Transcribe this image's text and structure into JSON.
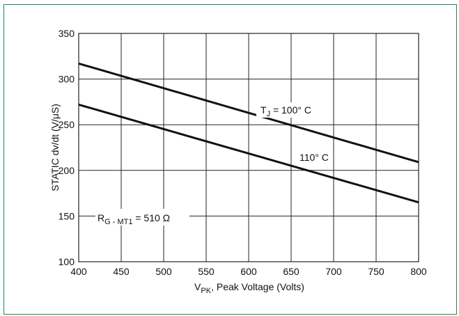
{
  "chart_data": {
    "type": "line",
    "xlabel": {
      "main": "V",
      "sub": "PK",
      "rest": ", Peak Voltage  (Volts)"
    },
    "ylabel": "STATIC dv/dt (V/μS)",
    "xlim": [
      400,
      800
    ],
    "ylim": [
      100,
      350
    ],
    "x_ticks": [
      400,
      450,
      500,
      550,
      600,
      650,
      700,
      750,
      800
    ],
    "y_ticks": [
      100,
      150,
      200,
      250,
      300,
      350
    ],
    "grid": true,
    "series": [
      {
        "label_main": "T",
        "label_sub": "J",
        "label_rest": " = 100° C",
        "x": [
          400,
          800
        ],
        "y": [
          317,
          209
        ]
      },
      {
        "label_main": "110° C",
        "label_sub": "",
        "label_rest": "",
        "x": [
          400,
          800
        ],
        "y": [
          272,
          165
        ]
      }
    ],
    "annotation": {
      "main": "R",
      "sub": "G - MT1",
      "rest": " = 510 Ω"
    }
  },
  "colors": {
    "line": "#111111",
    "grid": "#222222",
    "border": "#1a8a5a"
  }
}
